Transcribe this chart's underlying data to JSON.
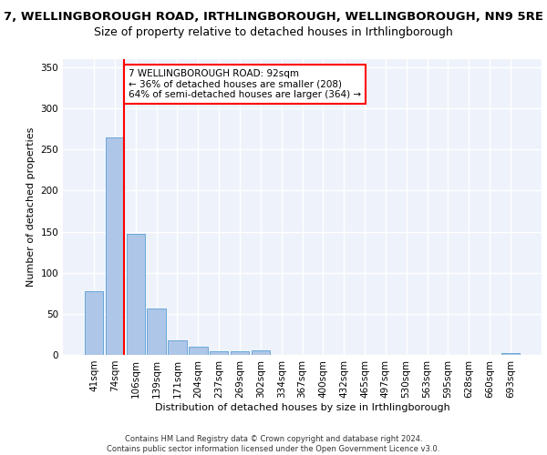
{
  "title1": "7, WELLINGBOROUGH ROAD, IRTHLINGBOROUGH, WELLINGBOROUGH, NN9 5RE",
  "title2": "Size of property relative to detached houses in Irthlingborough",
  "xlabel": "Distribution of detached houses by size in Irthlingborough",
  "ylabel": "Number of detached properties",
  "bar_labels": [
    "41sqm",
    "74sqm",
    "106sqm",
    "139sqm",
    "171sqm",
    "204sqm",
    "237sqm",
    "269sqm",
    "302sqm",
    "334sqm",
    "367sqm",
    "400sqm",
    "432sqm",
    "465sqm",
    "497sqm",
    "530sqm",
    "563sqm",
    "595sqm",
    "628sqm",
    "660sqm",
    "693sqm"
  ],
  "bar_values": [
    78,
    265,
    147,
    56,
    18,
    10,
    4,
    4,
    5,
    0,
    0,
    0,
    0,
    0,
    0,
    0,
    0,
    0,
    0,
    0,
    2
  ],
  "bar_color": "#aec6e8",
  "bar_edge_color": "#5a9fd4",
  "background_color": "#eef3fb",
  "grid_color": "#ffffff",
  "annotation_text": "7 WELLINGBOROUGH ROAD: 92sqm\n← 36% of detached houses are smaller (208)\n64% of semi-detached houses are larger (364) →",
  "red_line_x": 1.45,
  "ylim": [
    0,
    360
  ],
  "yticks": [
    0,
    50,
    100,
    150,
    200,
    250,
    300,
    350
  ],
  "footer": "Contains HM Land Registry data © Crown copyright and database right 2024.\nContains public sector information licensed under the Open Government Licence v3.0.",
  "title1_fontsize": 9.5,
  "title2_fontsize": 9,
  "axis_fontsize": 8,
  "tick_fontsize": 7.5,
  "footer_fontsize": 6.0
}
